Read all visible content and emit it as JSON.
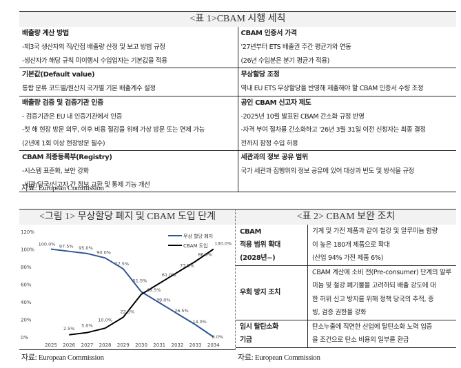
{
  "table1": {
    "title": "<표 1>CBAM 시행 세칙",
    "rows": [
      {
        "left": {
          "heading": "배출량 계산 방법",
          "lines": [
            "-제3국 생산자의 직/간접 배출량 산정 및 보고 방법 규정",
            "-생산자가 해당 규칙 미이행시 수입업자는 기본값을 적용"
          ]
        },
        "right": {
          "heading": "CBAM 인증서 가격",
          "lines": [
            "'27년부터 ETS 배출권 주간 평균가와 연동",
            "(26년 수입분은 분기 평균가 적용)"
          ]
        }
      },
      {
        "left": {
          "heading": "기본값(Default value)",
          "lines": [
            "통합 분류 코드별/원산지 국가별 기본 배출계수 설정"
          ]
        },
        "right": {
          "heading": "무상할당 조정",
          "lines": [
            "역내 EU ETS 무상할당을 반영해 제출해야 할 CBAM 인증서 수량 조정"
          ]
        }
      },
      {
        "left": {
          "heading": "배출량 검증 및 검증기관 인증",
          "lines": [
            "- 검증기관은 EU 내 인증기관에서 인증",
            "-첫 해 현장 방문 의무, 이후 비용 절감을 위해 가상 방문 또는 면제 가능",
            "(2년에 1회 이상 현장방문 필수)"
          ]
        },
        "right": {
          "heading": "공인 CBAM 신고자 제도",
          "lines": [
            "-2025년 10월 발표된 CBAM 간소화 규정 반영",
            "-자격 부여 절차를 간소화하고 '26년 3월 31일 이전 신청자는 최종 결정",
            "전까지 잠정 수입 허용"
          ]
        }
      },
      {
        "left": {
          "heading": "CBAM 최종등록부(Registry)",
          "lines": [
            "-시스템 표준화, 보안 강화",
            "-세관/당국/신고자 간 정보 교환 및 통제 기능 개선"
          ]
        },
        "right": {
          "heading": "세관과의 정보 공유 범위",
          "lines": [
            "국가 세관과 집행위의 정보 공유에 있어 대상과 빈도 및 방식을 규정"
          ]
        }
      }
    ],
    "source": "자료: European Commission"
  },
  "figure1": {
    "title": "<그림 1> 무상할당 폐지 및 CBAM 도입 단계",
    "source": "자료: European Commission"
  },
  "table2": {
    "title": "<표 2> CBAM 보완 조치",
    "rows": [
      {
        "key": [
          "CBAM",
          "적용 범위 확대",
          "(2028년~)"
        ],
        "value": [
          "기계 및 가전 제품과 같이 철강 및 알루미늄 함량",
          "이 높은 180개 제품으로 확대",
          "(산업 94% 가전 제품 6%)"
        ]
      },
      {
        "key": [
          "우회 방지 조치"
        ],
        "value": [
          "CBAM 계산에 소비 전(Pre-consumer) 단계의 알루",
          "미늄 및 철강 폐기물을 고려하되 배출 강도에 대",
          "한 허위 신고 방지를 위해 정책 당국의 추적, 증",
          "빙, 검증 권한을 강화"
        ]
      },
      {
        "key": [
          "임시 탈탄소화",
          "기금"
        ],
        "value": [
          "탄소누출에 직면한 산업에 탈탄소화 노력 입증",
          "을 조건으로 탄소 비용의 일부를 환급"
        ]
      }
    ],
    "source": "자료: European Commission"
  },
  "chart_data": {
    "type": "line",
    "title": "<그림 1> 무상할당 폐지 및 CBAM 도입 단계",
    "xlabel": "",
    "ylabel": "",
    "categories": [
      "2025",
      "2026",
      "2027",
      "2028",
      "2029",
      "2030",
      "2031",
      "2032",
      "2033",
      "2034"
    ],
    "ylim": [
      0,
      120
    ],
    "yticks": [
      "0%",
      "20%",
      "40%",
      "60%",
      "80%",
      "100%",
      "120%"
    ],
    "grid": false,
    "legend_position": "top-right",
    "series": [
      {
        "name": "무상 할당 폐지",
        "color": "#2f5597",
        "values": [
          100.0,
          97.5,
          95.0,
          90.0,
          77.5,
          51.5,
          39.0,
          26.5,
          14.0,
          0.0
        ],
        "labels": [
          "100.0%",
          "97.5%",
          "95.0%",
          "90.0%",
          "77.5%",
          "51.5%",
          "39.0%",
          "26.5%",
          "14.0%",
          "0.0%"
        ]
      },
      {
        "name": "CBAM 도입",
        "color": "#000000",
        "values": [
          null,
          2.5,
          5.0,
          10.0,
          22.5,
          48.5,
          61.0,
          73.5,
          86.0,
          100.0
        ],
        "labels": [
          "",
          "2.5%",
          "5.0%",
          "10.0%",
          "22.5%",
          "48.5%",
          "61.0%",
          "73.5%",
          "86.0%",
          "100.0%"
        ]
      }
    ]
  }
}
